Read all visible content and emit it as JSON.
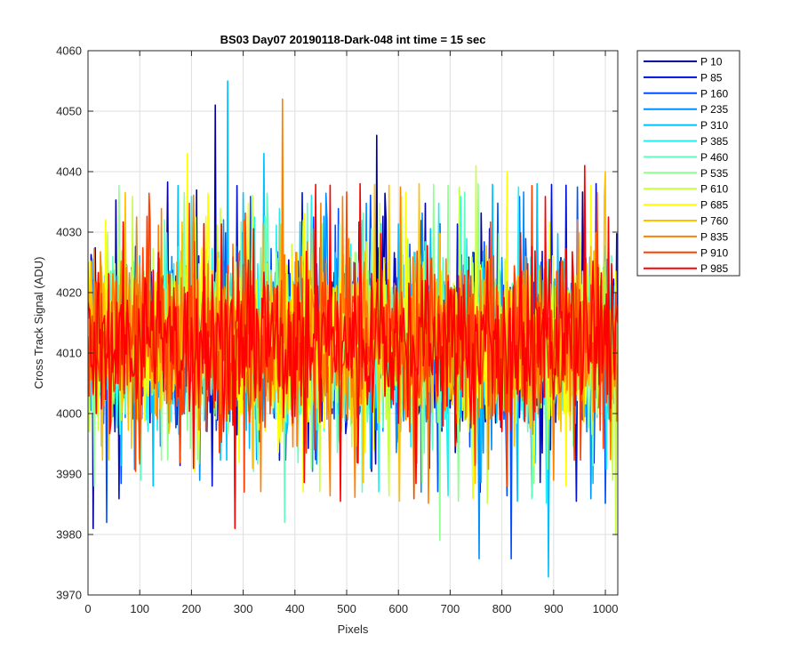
{
  "chart_data": {
    "type": "line",
    "title": "BS03 Day07 20190118-Dark-048 int time = 15 sec",
    "xlabel": "Pixels",
    "ylabel": "Cross Track Signal (ADU)",
    "xlim": [
      0,
      1024
    ],
    "ylim": [
      3970,
      4060
    ],
    "xticks": [
      0,
      100,
      200,
      300,
      400,
      500,
      600,
      700,
      800,
      900,
      1000
    ],
    "yticks": [
      3970,
      3980,
      3990,
      4000,
      4010,
      4020,
      4030,
      4040,
      4050,
      4060
    ],
    "grid": true,
    "legend_placement": "outside-right",
    "mean_level": 4012,
    "noise_range": [
      3995,
      4030
    ],
    "series": [
      {
        "name": "P 10",
        "color": "#0000a0"
      },
      {
        "name": "P 85",
        "color": "#0010d0"
      },
      {
        "name": "P 160",
        "color": "#0050ff"
      },
      {
        "name": "P 235",
        "color": "#0090ff"
      },
      {
        "name": "P 310",
        "color": "#00c0ff"
      },
      {
        "name": "P 385",
        "color": "#20f0f0"
      },
      {
        "name": "P 460",
        "color": "#60ffc0"
      },
      {
        "name": "P 535",
        "color": "#90ff90"
      },
      {
        "name": "P 610",
        "color": "#c8ff40"
      },
      {
        "name": "P 685",
        "color": "#ffff00"
      },
      {
        "name": "P 760",
        "color": "#ffc000"
      },
      {
        "name": "P 835",
        "color": "#ff8000"
      },
      {
        "name": "P 910",
        "color": "#ff4000"
      },
      {
        "name": "P 985",
        "color": "#ff0000"
      }
    ],
    "spikes": [
      {
        "series": "P 10",
        "x": 246,
        "y": 4051
      },
      {
        "series": "P 310",
        "x": 270,
        "y": 4055
      },
      {
        "series": "P 835",
        "x": 375,
        "y": 4052
      },
      {
        "series": "P 10",
        "x": 558,
        "y": 4046
      },
      {
        "series": "P 310",
        "x": 340,
        "y": 4043
      },
      {
        "series": "P 685",
        "x": 192,
        "y": 4043
      },
      {
        "series": "P 985",
        "x": 960,
        "y": 4041
      },
      {
        "series": "P 985",
        "x": 283,
        "y": 3981
      },
      {
        "series": "P 310",
        "x": 890,
        "y": 3973
      },
      {
        "series": "P 235",
        "x": 755,
        "y": 3976
      },
      {
        "series": "P 160",
        "x": 818,
        "y": 3976
      },
      {
        "series": "P 535",
        "x": 680,
        "y": 3979
      },
      {
        "series": "P 610",
        "x": 1020,
        "y": 3980
      },
      {
        "series": "P 460",
        "x": 380,
        "y": 3982
      },
      {
        "series": "P 160",
        "x": 35,
        "y": 3982
      },
      {
        "series": "P 10",
        "x": 10,
        "y": 3981
      },
      {
        "series": "P 685",
        "x": 810,
        "y": 4040
      },
      {
        "series": "P 610",
        "x": 750,
        "y": 4041
      },
      {
        "series": "P 760",
        "x": 1000,
        "y": 4040
      }
    ]
  }
}
